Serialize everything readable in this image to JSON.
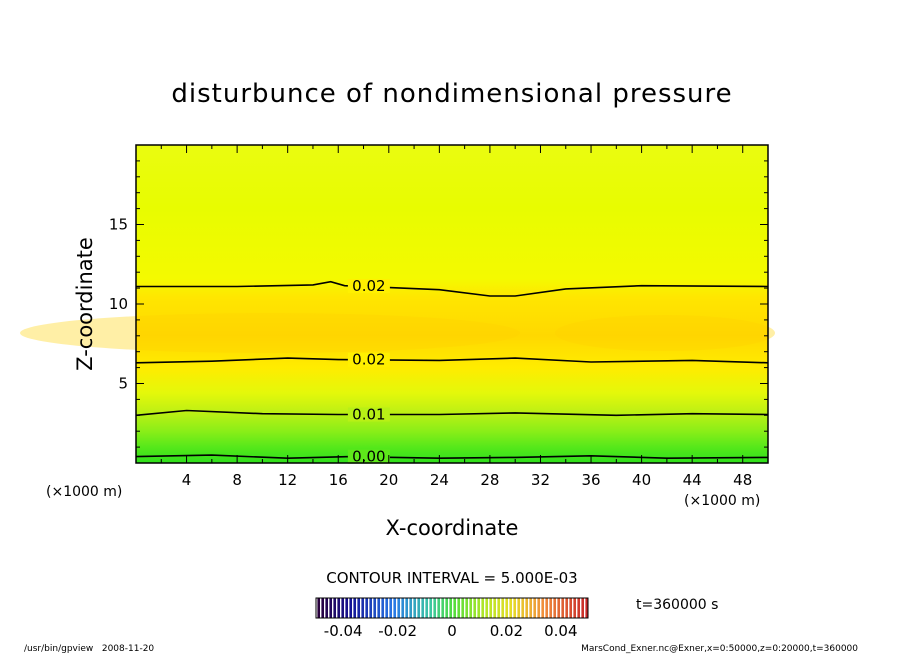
{
  "chart_data": {
    "type": "contour",
    "title": "disturbunce of nondimensional pressure",
    "xlabel": "X-coordinate",
    "ylabel": "Z-coordinate",
    "x_unit": "(×1000 m)",
    "y_unit": "(×1000 m)",
    "xlim": [
      0,
      50
    ],
    "ylim": [
      0,
      20
    ],
    "x_ticks": [
      4,
      8,
      12,
      16,
      20,
      24,
      28,
      32,
      36,
      40,
      44,
      48
    ],
    "y_ticks": [
      5,
      10,
      15
    ],
    "contours": [
      {
        "label": "0.00",
        "label_x": 17,
        "points": [
          [
            0,
            0.4
          ],
          [
            6,
            0.5
          ],
          [
            12,
            0.3
          ],
          [
            17,
            0.4
          ],
          [
            24,
            0.3
          ],
          [
            30,
            0.35
          ],
          [
            36,
            0.45
          ],
          [
            42,
            0.3
          ],
          [
            50,
            0.35
          ]
        ]
      },
      {
        "label": "0.01",
        "label_x": 17,
        "points": [
          [
            0,
            3.0
          ],
          [
            4,
            3.3
          ],
          [
            10,
            3.1
          ],
          [
            16,
            3.05
          ],
          [
            24,
            3.05
          ],
          [
            30,
            3.15
          ],
          [
            38,
            3.0
          ],
          [
            44,
            3.1
          ],
          [
            50,
            3.05
          ]
        ]
      },
      {
        "label": "0.02",
        "label_x": 17,
        "points": [
          [
            0,
            6.3
          ],
          [
            6,
            6.4
          ],
          [
            12,
            6.6
          ],
          [
            16,
            6.5
          ],
          [
            24,
            6.45
          ],
          [
            30,
            6.6
          ],
          [
            36,
            6.35
          ],
          [
            44,
            6.45
          ],
          [
            50,
            6.3
          ]
        ]
      },
      {
        "label": "0.02",
        "label_x": 17,
        "points": [
          [
            0,
            11.1
          ],
          [
            8,
            11.1
          ],
          [
            14,
            11.2
          ],
          [
            15.4,
            11.4
          ],
          [
            16.5,
            11.15
          ],
          [
            24,
            10.9
          ],
          [
            28,
            10.5
          ],
          [
            30,
            10.5
          ],
          [
            34,
            10.95
          ],
          [
            40,
            11.15
          ],
          [
            50,
            11.1
          ]
        ]
      }
    ],
    "contour_interval": "CONTOUR INTERVAL = 5.000E-03",
    "colorbar": {
      "min": -0.05,
      "max": 0.05,
      "ticks": [
        "-0.04",
        "-0.02",
        "0",
        "0.02",
        "0.04"
      ]
    },
    "time_label": "t=360000 s"
  },
  "footer": {
    "left": "/usr/bin/gpview   2008-11-20",
    "right": "MarsCond_Exner.nc@Exner,x=0:50000,z=0:20000,t=360000"
  }
}
